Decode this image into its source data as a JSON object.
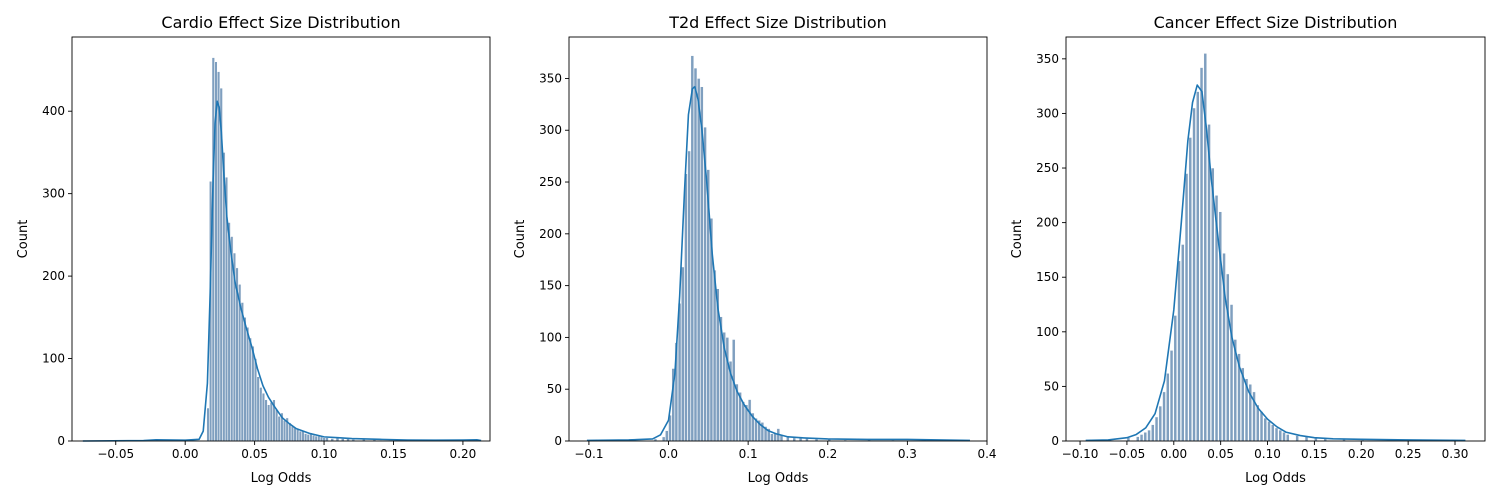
{
  "colors": {
    "bar_fill": "#7f9fbf",
    "bar_edge": "#ffffff",
    "kde": "#1f77b4",
    "axis": "#000000"
  },
  "chart_data": [
    {
      "type": "histogram",
      "title": "Cardio Effect Size Distribution",
      "xlabel": "Log Odds",
      "ylabel": "Count",
      "xlim": [
        -0.0815,
        0.2195
      ],
      "ylim": [
        0,
        490
      ],
      "xticks": [
        -0.05,
        0.0,
        0.05,
        0.1,
        0.15,
        0.2
      ],
      "xtick_labels": [
        "−0.05",
        "0.00",
        "0.05",
        "0.10",
        "0.15",
        "0.20"
      ],
      "yticks": [
        0,
        100,
        200,
        300,
        400
      ],
      "ytick_labels": [
        "0",
        "100",
        "200",
        "300",
        "400"
      ],
      "grid": false,
      "kde_overlay": true,
      "bins": [
        [
          -0.0737,
          1
        ],
        [
          -0.0212,
          2
        ],
        [
          0.0155,
          40
        ],
        [
          0.0174,
          315
        ],
        [
          0.0193,
          465
        ],
        [
          0.0212,
          460
        ],
        [
          0.0231,
          448
        ],
        [
          0.025,
          428
        ],
        [
          0.0269,
          350
        ],
        [
          0.0288,
          320
        ],
        [
          0.0307,
          265
        ],
        [
          0.0326,
          248
        ],
        [
          0.0345,
          228
        ],
        [
          0.0364,
          210
        ],
        [
          0.0383,
          190
        ],
        [
          0.0402,
          168
        ],
        [
          0.0421,
          150
        ],
        [
          0.044,
          138
        ],
        [
          0.0459,
          125
        ],
        [
          0.0478,
          115
        ],
        [
          0.0497,
          100
        ],
        [
          0.0516,
          78
        ],
        [
          0.0535,
          65
        ],
        [
          0.0554,
          58
        ],
        [
          0.0573,
          50
        ],
        [
          0.0592,
          44
        ],
        [
          0.0611,
          47
        ],
        [
          0.063,
          50
        ],
        [
          0.0649,
          38
        ],
        [
          0.0668,
          30
        ],
        [
          0.0687,
          34
        ],
        [
          0.0706,
          25
        ],
        [
          0.0725,
          28
        ],
        [
          0.0744,
          22
        ],
        [
          0.0763,
          18
        ],
        [
          0.0782,
          16
        ],
        [
          0.0801,
          14
        ],
        [
          0.082,
          12
        ],
        [
          0.0839,
          13
        ],
        [
          0.0858,
          9
        ],
        [
          0.0877,
          8
        ],
        [
          0.0896,
          10
        ],
        [
          0.0915,
          7
        ],
        [
          0.0934,
          6
        ],
        [
          0.0953,
          6
        ],
        [
          0.0972,
          5
        ],
        [
          0.0991,
          4
        ],
        [
          0.101,
          4
        ],
        [
          0.1048,
          3
        ],
        [
          0.1086,
          4
        ],
        [
          0.1124,
          3
        ],
        [
          0.1162,
          3
        ],
        [
          0.12,
          2
        ],
        [
          0.1276,
          3
        ],
        [
          0.1352,
          2
        ],
        [
          0.1466,
          1
        ],
        [
          0.158,
          1
        ],
        [
          0.1732,
          1
        ],
        [
          0.1884,
          1
        ],
        [
          0.2036,
          1
        ],
        [
          0.2093,
          2
        ]
      ],
      "kde": [
        [
          -0.0737,
          0
        ],
        [
          -0.03,
          0.5
        ],
        [
          -0.021,
          1.5
        ],
        [
          0.0,
          1
        ],
        [
          0.01,
          2
        ],
        [
          0.013,
          12
        ],
        [
          0.016,
          70
        ],
        [
          0.018,
          180
        ],
        [
          0.02,
          310
        ],
        [
          0.0215,
          385
        ],
        [
          0.023,
          412
        ],
        [
          0.0245,
          405
        ],
        [
          0.026,
          375
        ],
        [
          0.028,
          320
        ],
        [
          0.03,
          272
        ],
        [
          0.033,
          228
        ],
        [
          0.036,
          192
        ],
        [
          0.04,
          162
        ],
        [
          0.044,
          137
        ],
        [
          0.048,
          114
        ],
        [
          0.052,
          88
        ],
        [
          0.056,
          67
        ],
        [
          0.06,
          53
        ],
        [
          0.065,
          40
        ],
        [
          0.07,
          28
        ],
        [
          0.075,
          21
        ],
        [
          0.08,
          15
        ],
        [
          0.09,
          9
        ],
        [
          0.1,
          5
        ],
        [
          0.11,
          4
        ],
        [
          0.12,
          3
        ],
        [
          0.13,
          2.5
        ],
        [
          0.14,
          2
        ],
        [
          0.16,
          1.2
        ],
        [
          0.18,
          1
        ],
        [
          0.2,
          1.2
        ],
        [
          0.21,
          1.5
        ],
        [
          0.2131,
          0.5
        ]
      ]
    },
    {
      "type": "histogram",
      "title": "T2d Effect Size Distribution",
      "xlabel": "Log Odds",
      "ylabel": "Count",
      "xlim": [
        -0.125,
        0.4
      ],
      "ylim": [
        0,
        390
      ],
      "xticks": [
        -0.1,
        0.0,
        0.1,
        0.2,
        0.3,
        0.4
      ],
      "xtick_labels": [
        "−0.1",
        "0.0",
        "0.1",
        "0.2",
        "0.3",
        "0.4"
      ],
      "yticks": [
        0,
        50,
        100,
        150,
        200,
        250,
        300,
        350
      ],
      "ytick_labels": [
        "0",
        "50",
        "100",
        "150",
        "200",
        "250",
        "300",
        "350"
      ],
      "grid": false,
      "kde_overlay": true,
      "bins": [
        [
          -0.1025,
          1
        ],
        [
          -0.05,
          1
        ],
        [
          -0.0183,
          2
        ],
        [
          -0.008,
          4
        ],
        [
          -0.004,
          10
        ],
        [
          0.0,
          25
        ],
        [
          0.004,
          70
        ],
        [
          0.008,
          95
        ],
        [
          0.012,
          133
        ],
        [
          0.016,
          168
        ],
        [
          0.02,
          258
        ],
        [
          0.024,
          280
        ],
        [
          0.028,
          372
        ],
        [
          0.032,
          360
        ],
        [
          0.036,
          350
        ],
        [
          0.04,
          342
        ],
        [
          0.044,
          303
        ],
        [
          0.048,
          262
        ],
        [
          0.052,
          215
        ],
        [
          0.056,
          165
        ],
        [
          0.06,
          147
        ],
        [
          0.064,
          120
        ],
        [
          0.068,
          105
        ],
        [
          0.072,
          100
        ],
        [
          0.076,
          77
        ],
        [
          0.08,
          98
        ],
        [
          0.084,
          55
        ],
        [
          0.088,
          47
        ],
        [
          0.092,
          38
        ],
        [
          0.096,
          35
        ],
        [
          0.1,
          40
        ],
        [
          0.104,
          27
        ],
        [
          0.108,
          22
        ],
        [
          0.112,
          20
        ],
        [
          0.116,
          18
        ],
        [
          0.12,
          14
        ],
        [
          0.124,
          12
        ],
        [
          0.128,
          7
        ],
        [
          0.132,
          8
        ],
        [
          0.136,
          12
        ],
        [
          0.14,
          6
        ],
        [
          0.148,
          4
        ],
        [
          0.156,
          3
        ],
        [
          0.164,
          4
        ],
        [
          0.172,
          3
        ],
        [
          0.184,
          2
        ],
        [
          0.2,
          2
        ],
        [
          0.22,
          1
        ],
        [
          0.25,
          2
        ],
        [
          0.28,
          1
        ],
        [
          0.32,
          1
        ],
        [
          0.36,
          1
        ]
      ],
      "kde": [
        [
          -0.1025,
          0.5
        ],
        [
          -0.05,
          1
        ],
        [
          -0.02,
          2
        ],
        [
          -0.01,
          6
        ],
        [
          0.0,
          20
        ],
        [
          0.008,
          65
        ],
        [
          0.014,
          140
        ],
        [
          0.02,
          240
        ],
        [
          0.025,
          315
        ],
        [
          0.03,
          340
        ],
        [
          0.033,
          342
        ],
        [
          0.037,
          330
        ],
        [
          0.042,
          300
        ],
        [
          0.048,
          250
        ],
        [
          0.055,
          180
        ],
        [
          0.062,
          128
        ],
        [
          0.07,
          90
        ],
        [
          0.078,
          65
        ],
        [
          0.086,
          48
        ],
        [
          0.095,
          35
        ],
        [
          0.105,
          24
        ],
        [
          0.115,
          16
        ],
        [
          0.125,
          10
        ],
        [
          0.135,
          7
        ],
        [
          0.15,
          4
        ],
        [
          0.17,
          3
        ],
        [
          0.2,
          2
        ],
        [
          0.25,
          1.5
        ],
        [
          0.3,
          1.5
        ],
        [
          0.3786,
          0.5
        ]
      ]
    },
    {
      "type": "histogram",
      "title": "Cancer Effect Size Distribution",
      "xlabel": "Log Odds",
      "ylabel": "Count",
      "xlim": [
        -0.115,
        0.332
      ],
      "ylim": [
        0,
        370
      ],
      "xticks": [
        -0.1,
        -0.05,
        0.0,
        0.05,
        0.1,
        0.15,
        0.2,
        0.25,
        0.3
      ],
      "xtick_labels": [
        "−0.10",
        "−0.05",
        "0.00",
        "0.05",
        "0.10",
        "0.15",
        "0.20",
        "0.25",
        "0.30"
      ],
      "yticks": [
        0,
        50,
        100,
        150,
        200,
        250,
        300,
        350
      ],
      "ytick_labels": [
        "0",
        "50",
        "100",
        "150",
        "200",
        "250",
        "300",
        "350"
      ],
      "grid": false,
      "kde_overlay": true,
      "bins": [
        [
          -0.094,
          1
        ],
        [
          -0.07,
          1
        ],
        [
          -0.05,
          3
        ],
        [
          -0.04,
          4
        ],
        [
          -0.036,
          6
        ],
        [
          -0.032,
          8
        ],
        [
          -0.028,
          10
        ],
        [
          -0.024,
          15
        ],
        [
          -0.02,
          22
        ],
        [
          -0.016,
          32
        ],
        [
          -0.012,
          45
        ],
        [
          -0.008,
          62
        ],
        [
          -0.004,
          83
        ],
        [
          0.0,
          115
        ],
        [
          0.004,
          165
        ],
        [
          0.008,
          180
        ],
        [
          0.012,
          245
        ],
        [
          0.016,
          278
        ],
        [
          0.02,
          305
        ],
        [
          0.024,
          320
        ],
        [
          0.028,
          342
        ],
        [
          0.032,
          355
        ],
        [
          0.036,
          290
        ],
        [
          0.04,
          250
        ],
        [
          0.044,
          225
        ],
        [
          0.048,
          210
        ],
        [
          0.052,
          172
        ],
        [
          0.056,
          153
        ],
        [
          0.06,
          125
        ],
        [
          0.064,
          93
        ],
        [
          0.068,
          80
        ],
        [
          0.072,
          67
        ],
        [
          0.076,
          57
        ],
        [
          0.08,
          52
        ],
        [
          0.084,
          45
        ],
        [
          0.088,
          33
        ],
        [
          0.092,
          27
        ],
        [
          0.096,
          21
        ],
        [
          0.1,
          18
        ],
        [
          0.104,
          15
        ],
        [
          0.108,
          12
        ],
        [
          0.112,
          10
        ],
        [
          0.116,
          8
        ],
        [
          0.12,
          6
        ],
        [
          0.13,
          5
        ],
        [
          0.14,
          4
        ],
        [
          0.15,
          3
        ],
        [
          0.16,
          2
        ],
        [
          0.18,
          2
        ],
        [
          0.2,
          1
        ],
        [
          0.25,
          1
        ],
        [
          0.3,
          1
        ]
      ],
      "kde": [
        [
          -0.094,
          0.5
        ],
        [
          -0.07,
          1
        ],
        [
          -0.05,
          3
        ],
        [
          -0.04,
          6
        ],
        [
          -0.03,
          12
        ],
        [
          -0.02,
          25
        ],
        [
          -0.01,
          55
        ],
        [
          0.0,
          120
        ],
        [
          0.008,
          200
        ],
        [
          0.015,
          275
        ],
        [
          0.02,
          310
        ],
        [
          0.025,
          326
        ],
        [
          0.03,
          320
        ],
        [
          0.035,
          285
        ],
        [
          0.04,
          240
        ],
        [
          0.048,
          180
        ],
        [
          0.055,
          130
        ],
        [
          0.062,
          95
        ],
        [
          0.07,
          68
        ],
        [
          0.08,
          45
        ],
        [
          0.09,
          30
        ],
        [
          0.1,
          20
        ],
        [
          0.11,
          13
        ],
        [
          0.12,
          8
        ],
        [
          0.135,
          5
        ],
        [
          0.15,
          3
        ],
        [
          0.17,
          2
        ],
        [
          0.2,
          1.5
        ],
        [
          0.25,
          1
        ],
        [
          0.3111,
          0.5
        ]
      ]
    }
  ]
}
